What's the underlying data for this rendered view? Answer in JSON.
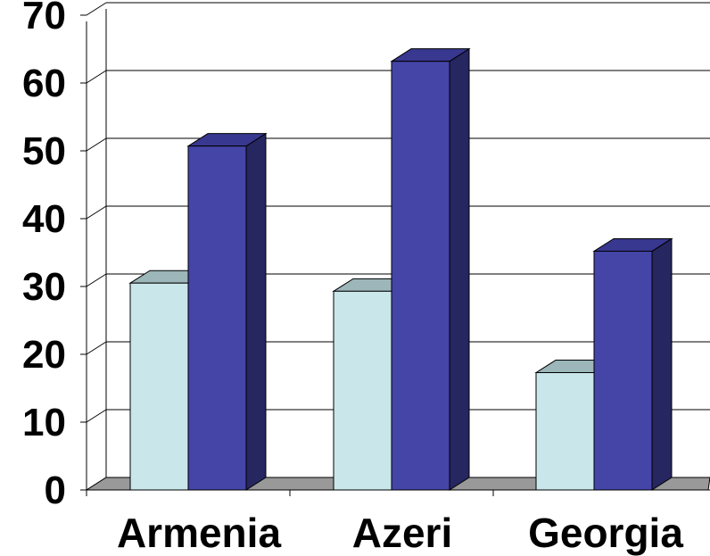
{
  "chart_data": {
    "type": "bar",
    "categories": [
      "Armenia",
      "Azeri",
      "Georgia"
    ],
    "series": [
      {
        "values": [
          30.5,
          29.3,
          17.3
        ]
      },
      {
        "values": [
          50.7,
          63.2,
          35.2
        ]
      }
    ],
    "ylim": [
      0,
      70
    ],
    "yticks": [
      "0",
      "10",
      "20",
      "30",
      "40",
      "50",
      "60",
      "70"
    ],
    "grid": true,
    "three_d": true,
    "legend": "none",
    "colors": {
      "series1_front": "#c9e6ea",
      "series1_top": "#9cb6b9",
      "series2_front": "#4545a8",
      "series2_top": "#383890",
      "series2_side": "#262660",
      "floor": "#999999"
    }
  }
}
